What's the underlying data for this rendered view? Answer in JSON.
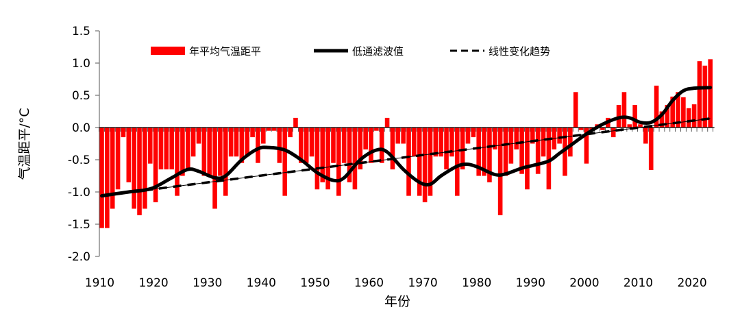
{
  "chart_data": {
    "type": "bar",
    "title": "",
    "xlabel": "年份",
    "ylabel": "气温距平/°C",
    "ylim": [
      -2.0,
      1.5
    ],
    "yticks": [
      "1.5",
      "1.0",
      "0.5",
      "0.0",
      "-0.5",
      "-1.0",
      "-1.5",
      "-2.0"
    ],
    "xticks": [
      "1910",
      "1920",
      "1930",
      "1940",
      "1950",
      "1960",
      "1970",
      "1980",
      "1990",
      "2000",
      "2010",
      "2020"
    ],
    "legend_position": "top",
    "grid": false,
    "colors": {
      "bars": "#ff0000",
      "smooth": "#000000",
      "trend": "#000000"
    },
    "legend": [
      "年平均气温距平",
      "低通滤波值",
      "线性变化趋势"
    ],
    "years_start": 1910,
    "values": [
      -1.56,
      -1.56,
      -1.26,
      -0.96,
      -0.15,
      -0.85,
      -1.26,
      -1.36,
      -1.26,
      -0.56,
      -1.16,
      -0.65,
      -0.65,
      -0.65,
      -1.06,
      -0.75,
      -0.65,
      -0.45,
      -0.25,
      -0.75,
      -0.75,
      -1.26,
      -0.75,
      -1.06,
      -0.45,
      -0.45,
      -0.55,
      -0.45,
      -0.15,
      -0.55,
      -0.25,
      -0.05,
      -0.05,
      -0.55,
      -1.06,
      -0.15,
      0.15,
      -0.55,
      -0.55,
      -0.45,
      -0.96,
      -0.85,
      -0.96,
      -0.55,
      -1.06,
      -0.55,
      -0.85,
      -0.96,
      -0.65,
      -0.34,
      -0.55,
      -0.05,
      -0.55,
      0.15,
      -0.65,
      -0.25,
      -0.25,
      -1.06,
      -0.45,
      -1.06,
      -1.16,
      -1.06,
      -0.45,
      -0.45,
      -0.65,
      -0.45,
      -1.06,
      -0.65,
      -0.25,
      -0.15,
      -0.75,
      -0.75,
      -0.85,
      -0.34,
      -1.36,
      -0.75,
      -0.56,
      -0.34,
      -0.72,
      -0.96,
      -0.25,
      -0.72,
      -0.45,
      -0.96,
      -0.34,
      -0.25,
      -0.75,
      -0.45,
      0.55,
      -0.04,
      -0.56,
      -0.03,
      0.05,
      -0.04,
      0.15,
      -0.15,
      0.35,
      0.55,
      0.05,
      0.35,
      0.05,
      -0.25,
      -0.66,
      0.65,
      0.25,
      0.35,
      0.48,
      0.55,
      0.47,
      0.3,
      0.36,
      1.03,
      0.96,
      1.06
    ],
    "smooth": {
      "x": [
        1910,
        1915,
        1918,
        1920,
        1923,
        1926,
        1928,
        1931,
        1933,
        1936,
        1939,
        1941,
        1944,
        1947,
        1950,
        1953,
        1955,
        1958,
        1961,
        1963,
        1966,
        1969,
        1971,
        1973,
        1976,
        1978,
        1980,
        1983,
        1985,
        1988,
        1990,
        1993,
        1995,
        1997,
        2000,
        2003,
        2006,
        2008,
        2010,
        2012,
        2014,
        2016,
        2018,
        2020,
        2023
      ],
      "y": [
        -1.06,
        -1.0,
        -0.97,
        -0.92,
        -0.78,
        -0.65,
        -0.68,
        -0.78,
        -0.75,
        -0.5,
        -0.33,
        -0.31,
        -0.35,
        -0.5,
        -0.7,
        -0.82,
        -0.78,
        -0.5,
        -0.35,
        -0.38,
        -0.65,
        -0.85,
        -0.88,
        -0.75,
        -0.6,
        -0.57,
        -0.62,
        -0.73,
        -0.72,
        -0.63,
        -0.59,
        -0.52,
        -0.4,
        -0.28,
        -0.1,
        0.05,
        0.15,
        0.15,
        0.08,
        0.08,
        0.2,
        0.42,
        0.57,
        0.61,
        0.62
      ]
    },
    "trend": {
      "x": [
        1910,
        2023
      ],
      "y": [
        -1.06,
        0.14
      ]
    }
  }
}
